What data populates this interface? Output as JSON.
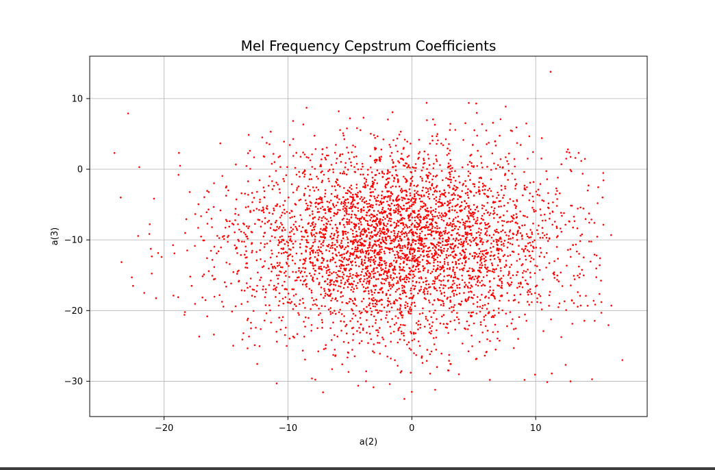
{
  "chart_data": {
    "type": "scatter",
    "title": "Mel Frequency Cepstrum Coefficients",
    "xlabel": "a(2)",
    "ylabel": "a(3)",
    "xlim": [
      -26,
      19
    ],
    "ylim": [
      -35,
      16
    ],
    "xticks": [
      -20,
      -10,
      0,
      10
    ],
    "yticks": [
      10,
      0,
      -10,
      -20,
      -30
    ],
    "xtick_labels": [
      "−20",
      "−10",
      "0",
      "10"
    ],
    "ytick_labels": [
      "10",
      "0",
      "−10",
      "−20",
      "−30"
    ],
    "grid": true,
    "marker_color": "#ff0000",
    "series": [
      {
        "distribution": {
          "n": 4200,
          "mean_x": -1.2,
          "mean_y": -10.5,
          "sd_x": 6.8,
          "sd_y": 6.9
        },
        "outliers": [
          [
            11.2,
            13.8
          ],
          [
            -22.9,
            7.9
          ],
          [
            -24.0,
            2.3
          ],
          [
            -23.5,
            -4.0
          ],
          [
            -8.5,
            8.7
          ],
          [
            1.2,
            9.4
          ],
          [
            5.2,
            9.3
          ],
          [
            -5.9,
            8.2
          ],
          [
            17.0,
            -27.0
          ],
          [
            15.3,
            -18.8
          ],
          [
            14.2,
            -3.0
          ],
          [
            10.5,
            4.4
          ],
          [
            12.6,
            2.8
          ],
          [
            -0.6,
            -32.5
          ],
          [
            11.3,
            -28.9
          ],
          [
            -21.6,
            -17.5
          ],
          [
            -18.7,
            0.5
          ],
          [
            -22.0,
            0.3
          ],
          [
            -22.6,
            -15.3
          ],
          [
            -10.1,
            -25.0
          ],
          [
            9.1,
            -29.8
          ],
          [
            6.3,
            -29.8
          ],
          [
            -3.7,
            -30.0
          ],
          [
            0.0,
            -31.5
          ],
          [
            15.0,
            -4.8
          ],
          [
            13.2,
            1.6
          ],
          [
            -3.9,
            7.3
          ],
          [
            -22.5,
            -16.5
          ]
        ]
      }
    ]
  }
}
